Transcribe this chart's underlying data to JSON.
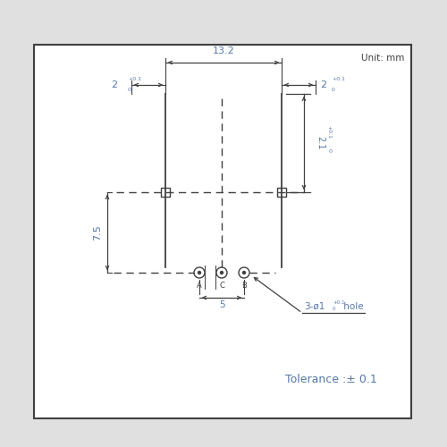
{
  "bg_color": "#e0e0e0",
  "box_color": "#ffffff",
  "line_color": "#404040",
  "dim_color": "#5577aa",
  "unit_text": "Unit: mm",
  "tolerance_text": "Tolerance :± 0.1",
  "hole_label": "3-ø1",
  "hole_label_super": "+0.1",
  "hole_label_sub": "0",
  "hole_label_suffix": " hole",
  "dim_13_2": "13.2",
  "dim_2_left": "2",
  "dim_2_left_super": "+0.1",
  "dim_2_left_sub": "0",
  "dim_2_right": "2",
  "dim_2_right_super": "+0.1",
  "dim_2_right_sub": "0",
  "dim_2_1": "2.1",
  "dim_2_1_super": "+0.1",
  "dim_2_1_sub": "0",
  "dim_7_5": "7.5",
  "dim_5": "5",
  "label_A": "A",
  "label_C": "C",
  "label_B": "B"
}
